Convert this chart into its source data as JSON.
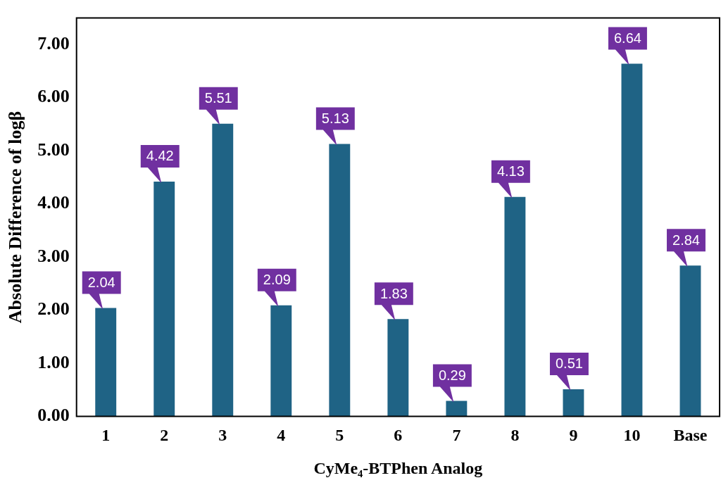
{
  "chart_data": {
    "type": "bar",
    "xlabel": "CyMe₄-BTPhen Analog",
    "ylabel": "Absolute Difference of logβ",
    "categories": [
      "1",
      "2",
      "3",
      "4",
      "5",
      "6",
      "7",
      "8",
      "9",
      "10",
      "Base"
    ],
    "values": [
      2.04,
      4.42,
      5.51,
      2.09,
      5.13,
      1.83,
      0.29,
      4.13,
      0.51,
      6.64,
      2.84
    ],
    "color": "#1f6385",
    "ylim": [
      0,
      7.5
    ],
    "yticks": [
      {
        "value": 0,
        "label": "0.00"
      },
      {
        "value": 1,
        "label": "1.00"
      },
      {
        "value": 2,
        "label": "2.00"
      },
      {
        "value": 3,
        "label": "3.00"
      },
      {
        "value": 4,
        "label": "4.00"
      },
      {
        "value": 5,
        "label": "5.00"
      },
      {
        "value": 6,
        "label": "6.00"
      },
      {
        "value": 7,
        "label": "7.00"
      }
    ],
    "grid": false,
    "legend": false,
    "data_labels": true
  }
}
